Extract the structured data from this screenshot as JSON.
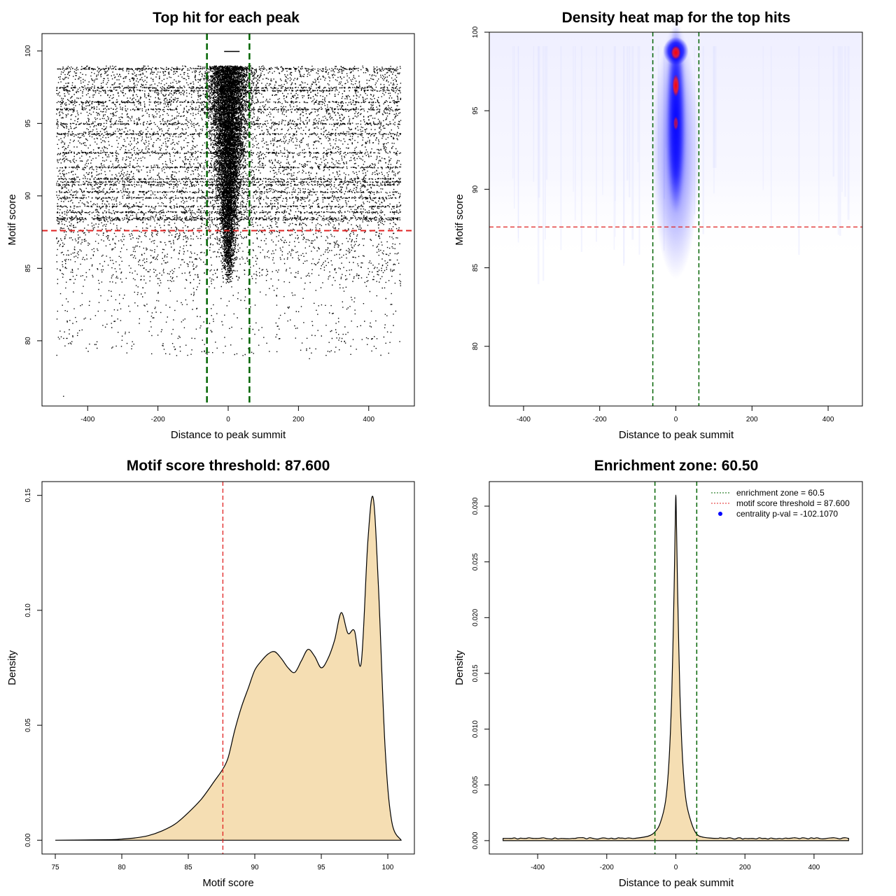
{
  "chart_data": [
    {
      "type": "scatter",
      "title": "Top hit for each peak",
      "xlabel": "Distance to peak summit",
      "ylabel": "Motif score",
      "xlim": [
        -530,
        530
      ],
      "ylim": [
        75.5,
        101.2
      ],
      "xticks": [
        -400,
        -200,
        0,
        200,
        400
      ],
      "yticks": [
        80,
        85,
        90,
        95,
        100
      ],
      "threshold_y": 87.6,
      "zone_x": [
        -60.5,
        60.5
      ],
      "x_range_of_points": [
        -490,
        490
      ],
      "y_range_of_points": [
        75.8,
        100
      ],
      "dense_score_rows": [
        98.8,
        97.5,
        97.3,
        96.5,
        96.0,
        95.0,
        94.3,
        93.0,
        92.0,
        91.2,
        91.0,
        90.8,
        90.3,
        89.9,
        89.3,
        88.9,
        88.5,
        88.4
      ],
      "colors": {
        "points": "#000000",
        "threshold": "#e02020",
        "zone": "#006400"
      }
    },
    {
      "type": "heatmap",
      "title": "Density heat map for the top hits",
      "xlabel": "Distance to peak summit",
      "ylabel": "Motif score",
      "xlim": [
        -490,
        490
      ],
      "ylim": [
        76.2,
        100
      ],
      "xticks": [
        -400,
        -200,
        0,
        200,
        400
      ],
      "yticks": [
        80,
        85,
        90,
        95,
        100
      ],
      "threshold_y": 87.6,
      "zone_x": [
        -60.5,
        60.5
      ],
      "hotspot": {
        "x": 0,
        "y_top": 99.0,
        "y_bottom": 86.5
      },
      "colors": {
        "low": "#ffffff",
        "mid": "#0000ff",
        "high": "#ff0000",
        "threshold": "#e02020",
        "zone": "#006400"
      }
    },
    {
      "type": "area",
      "title": "Motif score threshold: 87.600",
      "xlabel": "Motif score",
      "ylabel": "Density",
      "xlim": [
        74,
        102
      ],
      "ylim": [
        -0.006,
        0.156
      ],
      "xticks": [
        75,
        80,
        85,
        90,
        95,
        100
      ],
      "yticks": [
        0.0,
        0.05,
        0.1,
        0.15
      ],
      "ytick_labels": [
        "0.00",
        "0.05",
        "0.10",
        "0.15"
      ],
      "threshold_x": 87.6,
      "x": [
        75,
        79,
        80,
        81,
        82,
        83,
        84,
        85,
        86,
        87,
        87.6,
        88,
        88.5,
        89,
        89.5,
        90,
        90.5,
        91,
        91.5,
        92,
        92.5,
        93,
        93.5,
        94,
        94.5,
        95,
        95.5,
        96,
        96.5,
        97,
        97.5,
        98,
        98.5,
        98.9,
        99.3,
        99.8,
        100.3,
        101
      ],
      "y": [
        0.0,
        0.0002,
        0.0005,
        0.001,
        0.002,
        0.004,
        0.007,
        0.012,
        0.018,
        0.026,
        0.031,
        0.036,
        0.048,
        0.058,
        0.066,
        0.074,
        0.078,
        0.081,
        0.082,
        0.079,
        0.075,
        0.073,
        0.078,
        0.083,
        0.08,
        0.075,
        0.079,
        0.087,
        0.099,
        0.09,
        0.091,
        0.077,
        0.13,
        0.149,
        0.11,
        0.04,
        0.008,
        0.0
      ],
      "colors": {
        "fill": "#f5deb3",
        "line": "#000000",
        "threshold": "#e02020"
      }
    },
    {
      "type": "area",
      "title": "Enrichment zone: 60.50",
      "xlabel": "Distance to peak summit",
      "ylabel": "Density",
      "xlim": [
        -540,
        540
      ],
      "ylim": [
        -0.0012,
        0.0322
      ],
      "xticks": [
        -400,
        -200,
        0,
        200,
        400
      ],
      "yticks": [
        0.0,
        0.005,
        0.01,
        0.015,
        0.02,
        0.025,
        0.03
      ],
      "ytick_labels": [
        "0.000",
        "0.005",
        "0.010",
        "0.015",
        "0.020",
        "0.025",
        "0.030"
      ],
      "zone_x": [
        -60.5,
        60.5
      ],
      "x": [
        -500,
        -400,
        -300,
        -200,
        -120,
        -80,
        -60,
        -45,
        -30,
        -20,
        -12,
        -6,
        -2,
        0,
        2,
        6,
        12,
        20,
        30,
        45,
        60,
        80,
        120,
        200,
        300,
        400,
        500
      ],
      "y": [
        0.0002,
        0.0002,
        0.0002,
        0.0002,
        0.0002,
        0.0004,
        0.0008,
        0.0016,
        0.0035,
        0.007,
        0.013,
        0.021,
        0.028,
        0.031,
        0.028,
        0.021,
        0.013,
        0.007,
        0.0035,
        0.0016,
        0.0006,
        0.0003,
        0.0002,
        0.0002,
        0.0002,
        0.0002,
        0.0002
      ],
      "legend": [
        {
          "label": "enrichment zone = 60.5",
          "style": "dotted-line",
          "color": "#006400"
        },
        {
          "label": "motif score threshold = 87.600",
          "style": "dotted-line",
          "color": "#e02020"
        },
        {
          "label": "centrality p-val = -102.1070",
          "style": "point",
          "color": "#0000ff"
        }
      ],
      "legend_position": "top-right",
      "colors": {
        "fill": "#f5deb3",
        "line": "#000000",
        "zone": "#006400"
      }
    }
  ]
}
